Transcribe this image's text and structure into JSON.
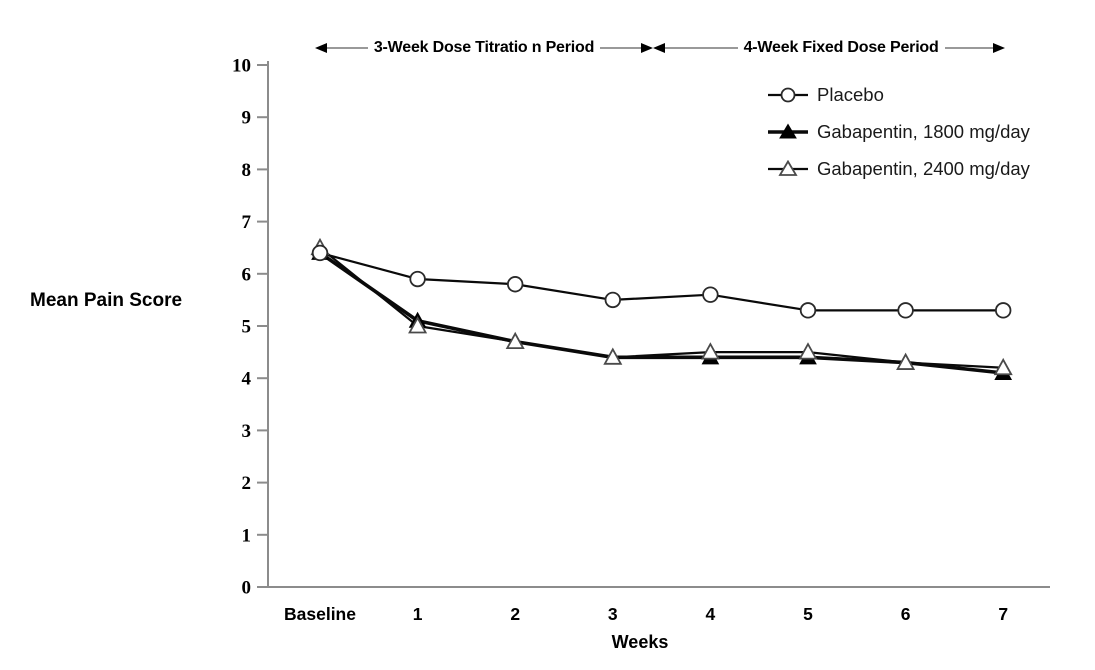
{
  "chart_data": {
    "type": "line",
    "title": "",
    "xlabel": "Weeks",
    "ylabel": "Mean Pain Score",
    "ylim": [
      0,
      10
    ],
    "y_ticks": [
      0,
      1,
      2,
      3,
      4,
      5,
      6,
      7,
      8,
      9,
      10
    ],
    "categories": [
      "Baseline",
      "1",
      "2",
      "3",
      "4",
      "5",
      "6",
      "7"
    ],
    "grid": false,
    "legend_position": "top-right",
    "series": [
      {
        "name": "Placebo",
        "marker": "open-circle",
        "line_width": "thin",
        "color": "#000000",
        "values": [
          6.4,
          5.9,
          5.8,
          5.5,
          5.6,
          5.3,
          5.3,
          5.3
        ]
      },
      {
        "name": "Gabapentin, 1800 mg/day",
        "marker": "filled-triangle",
        "line_width": "thick",
        "color": "#000000",
        "values": [
          6.4,
          5.1,
          4.7,
          4.4,
          4.4,
          4.4,
          4.3,
          4.1
        ]
      },
      {
        "name": "Gabapentin, 2400 mg/day",
        "marker": "open-triangle",
        "line_width": "thin",
        "color": "#000000",
        "values": [
          6.5,
          5.0,
          4.7,
          4.4,
          4.5,
          4.5,
          4.3,
          4.2
        ]
      }
    ],
    "annotations": [
      {
        "text": "3-Week Dose Titratio n Period"
      },
      {
        "text": "4-Week Fixed Dose Period"
      }
    ],
    "colors": {
      "line": "#0a0a0a",
      "axis": "#8c8c8c",
      "annotation_line": "#999999",
      "marker_fill": "#ffffff",
      "background": "#ffffff"
    }
  }
}
